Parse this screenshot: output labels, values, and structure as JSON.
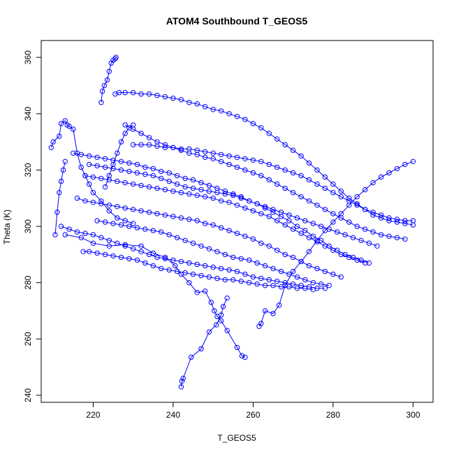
{
  "chart_data": {
    "type": "scatter",
    "title": "ATOM4 Southbound T_GEOS5",
    "xlabel": "T_GEOS5",
    "ylabel": "Theta (K)",
    "xlim": [
      207,
      305
    ],
    "ylim": [
      237.5,
      366
    ],
    "xticks": [
      220,
      240,
      260,
      280,
      300
    ],
    "yticks": [
      240,
      260,
      280,
      300,
      320,
      340,
      360
    ],
    "grid": false,
    "legend": "none",
    "marker": "open-circle",
    "connect_points": true,
    "color": "#0000ff",
    "series": [
      {
        "x": [
          242.0,
          242.2,
          242.5,
          244.5,
          247.0,
          249.0,
          250.8,
          252.0,
          252.5,
          253.5
        ],
        "y": [
          243.0,
          245.0,
          246.0,
          253.5,
          256.5,
          262.5,
          265.0,
          268.5,
          271.5,
          274.5
        ]
      },
      {
        "x": [
          258.0,
          257.2,
          256.0,
          253.5,
          252.0,
          251.0,
          250.3,
          249.5,
          248.0,
          246.0,
          244.0,
          242.0,
          240.5,
          238.0,
          235.0,
          232.0,
          228.0,
          224.0,
          220.0,
          217.0,
          213.0
        ],
        "y": [
          253.5,
          254.0,
          257.0,
          263.0,
          266.5,
          268.0,
          270.0,
          273.0,
          277.0,
          276.5,
          280.0,
          283.0,
          286.0,
          289.0,
          290.5,
          293.0,
          293.5,
          293.0,
          294.0,
          296.0,
          297.0
        ]
      },
      {
        "x": [
          261.5,
          262.0,
          263.0,
          265.0,
          266.5,
          268.0,
          270.0,
          272.0,
          274.0,
          276.0,
          278.0,
          280.0,
          282.0,
          284.0,
          286.0,
          288.0,
          290.0,
          292.0,
          294.0,
          296.0,
          298.0,
          300.0
        ],
        "y": [
          264.5,
          265.5,
          270.0,
          269.0,
          272.0,
          279.0,
          284.0,
          287.5,
          291.0,
          295.0,
          298.5,
          301.5,
          304.5,
          307.5,
          310.5,
          313.0,
          315.5,
          317.5,
          319.0,
          320.5,
          322.0,
          323.0
        ]
      },
      {
        "x": [
          209.5,
          210.0,
          211.5,
          212.0,
          213.0,
          213.5,
          214.0,
          215.0,
          216.0,
          217.0,
          218.0,
          219.0,
          220.0,
          222.0,
          224.0,
          226.0,
          228.0,
          230.0
        ],
        "y": [
          328.0,
          330.0,
          332.0,
          336.5,
          337.5,
          336.0,
          335.5,
          334.5,
          326.0,
          321.0,
          318.0,
          315.0,
          312.0,
          309.0,
          305.5,
          303.0,
          302.0,
          301.0
        ]
      },
      {
        "x": [
          222.0,
          222.3,
          222.8,
          223.5,
          224.0,
          224.5,
          225.0,
          225.5,
          225.7
        ],
        "y": [
          344.0,
          348.0,
          350.0,
          352.0,
          355.0,
          358.0,
          359.0,
          359.5,
          360.0
        ]
      },
      {
        "x": [
          225.5,
          226.5,
          228.0,
          230.0,
          232.0,
          234.0,
          236.0,
          238.0,
          240.0,
          242.0,
          244.0,
          246.0,
          248.0,
          250.0,
          252.0,
          254.0,
          256.0,
          258.0,
          260.0,
          262.0,
          264.0,
          266.0,
          268.0,
          270.0,
          272.0,
          274.0,
          276.0,
          278.0,
          280.0,
          282.0,
          284.0,
          286.0,
          288.0,
          290.0,
          292.0,
          294.0,
          296.0,
          298.0,
          300.0
        ],
        "y": [
          347.0,
          347.5,
          347.5,
          347.5,
          347.0,
          347.0,
          346.5,
          346.0,
          345.5,
          345.0,
          344.0,
          343.5,
          342.5,
          341.5,
          341.0,
          340.0,
          339.0,
          338.0,
          336.5,
          335.0,
          333.0,
          331.0,
          329.0,
          327.0,
          325.0,
          322.5,
          320.0,
          317.5,
          315.0,
          312.5,
          310.0,
          308.0,
          306.0,
          304.0,
          303.0,
          302.0,
          301.5,
          301.0,
          300.5
        ]
      },
      {
        "x": [
          228.0,
          230.0,
          232.0,
          234.0,
          236.0,
          238.0,
          240.0,
          242.0,
          244.0,
          246.0,
          248.0,
          250.0,
          252.0,
          254.0,
          256.0,
          258.0,
          260.0,
          262.0,
          264.0,
          266.0,
          268.0,
          270.0,
          272.0,
          274.0,
          276.0,
          278.0,
          280.0,
          282.0,
          284.0,
          286.0,
          288.0,
          290.0,
          292.0,
          294.0,
          296.0,
          298.0
        ],
        "y": [
          336.0,
          334.5,
          333.0,
          331.5,
          330.0,
          329.0,
          328.0,
          327.0,
          326.0,
          325.5,
          324.5,
          324.0,
          323.0,
          322.0,
          321.0,
          320.0,
          319.0,
          318.0,
          316.5,
          315.0,
          313.5,
          312.0,
          310.5,
          309.0,
          307.5,
          306.0,
          304.5,
          303.0,
          301.5,
          300.0,
          299.0,
          298.0,
          297.0,
          296.5,
          296.0,
          295.5
        ]
      },
      {
        "x": [
          215.0,
          217.0,
          219.0,
          221.0,
          223.0,
          225.0,
          227.0,
          229.0,
          231.0,
          233.0,
          235.0,
          237.0,
          239.0,
          241.0,
          243.0,
          245.0,
          247.0,
          249.0,
          251.0,
          253.0,
          255.0,
          257.0,
          259.0,
          261.0,
          263.0,
          265.0,
          267.0,
          269.0,
          271.0,
          273.0,
          275.0,
          277.0,
          279.0,
          281.0,
          283.0,
          285.0,
          287.0,
          289.0
        ],
        "y": [
          326.0,
          325.5,
          325.0,
          324.5,
          324.0,
          323.5,
          323.0,
          322.5,
          322.0,
          321.0,
          320.5,
          319.5,
          319.0,
          318.0,
          317.0,
          316.5,
          315.5,
          314.5,
          313.5,
          312.5,
          311.5,
          310.5,
          309.0,
          308.0,
          306.5,
          305.0,
          303.5,
          302.0,
          300.0,
          298.5,
          296.5,
          295.0,
          293.0,
          291.5,
          290.0,
          289.0,
          288.0,
          287.0
        ]
      },
      {
        "x": [
          218.0,
          220.0,
          222.0,
          224.0,
          226.0,
          228.0,
          230.0,
          232.0,
          234.0,
          236.0,
          238.0,
          240.0,
          242.0,
          244.0,
          246.0,
          248.0,
          250.0,
          252.0,
          254.0,
          256.0,
          258.0,
          260.0,
          262.0,
          264.0,
          266.0,
          268.0,
          270.0,
          272.0,
          274.0,
          276.0,
          278.0,
          280.0,
          282.0,
          284.0,
          286.0,
          288.0
        ],
        "y": [
          318.0,
          317.5,
          317.0,
          316.5,
          316.0,
          315.5,
          315.0,
          314.5,
          314.0,
          313.5,
          313.0,
          312.5,
          312.0,
          311.5,
          311.0,
          310.5,
          310.0,
          309.0,
          308.5,
          307.5,
          306.5,
          305.5,
          304.5,
          303.5,
          302.0,
          300.5,
          299.0,
          297.5,
          296.0,
          294.5,
          293.0,
          291.5,
          290.0,
          289.0,
          288.0,
          287.0
        ]
      },
      {
        "x": [
          216.0,
          218.0,
          220.0,
          222.0,
          224.0,
          226.0,
          228.0,
          230.0,
          232.0,
          234.0,
          236.0,
          238.0,
          240.0,
          242.0,
          244.0,
          246.0,
          248.0,
          250.0,
          252.0,
          254.0,
          256.0,
          258.0,
          260.0,
          262.0,
          264.0,
          266.0,
          268.0,
          270.0,
          272.0,
          274.0,
          276.0,
          278.0,
          280.0,
          282.0
        ],
        "y": [
          310.0,
          309.0,
          308.5,
          308.0,
          307.5,
          307.0,
          306.5,
          306.0,
          305.5,
          305.0,
          304.5,
          304.0,
          303.5,
          303.0,
          302.5,
          302.0,
          301.0,
          300.5,
          299.5,
          298.5,
          297.5,
          296.5,
          295.5,
          294.0,
          293.0,
          291.5,
          290.0,
          289.0,
          287.5,
          286.0,
          285.0,
          284.0,
          283.0,
          282.0
        ]
      },
      {
        "x": [
          212.0,
          214.0,
          216.0,
          218.0,
          220.0,
          222.0,
          224.0,
          226.0,
          228.0,
          230.0,
          232.0,
          234.0,
          236.0,
          238.0,
          240.0,
          242.0,
          244.0,
          246.0,
          248.0,
          250.0,
          252.0,
          254.0,
          256.0,
          258.0,
          260.0,
          262.0,
          264.0,
          266.0,
          268.0,
          270.0,
          272.0,
          274.0,
          276.0,
          278.0
        ],
        "y": [
          300.0,
          299.0,
          298.0,
          297.5,
          297.0,
          296.0,
          295.0,
          294.0,
          293.0,
          292.0,
          291.0,
          290.0,
          289.0,
          288.5,
          288.0,
          287.5,
          287.0,
          286.5,
          286.0,
          285.5,
          285.0,
          284.5,
          284.0,
          283.0,
          282.0,
          281.5,
          281.0,
          280.5,
          280.0,
          279.5,
          279.0,
          278.5,
          278.0,
          278.0
        ]
      },
      {
        "x": [
          217.5,
          219.0,
          221.0,
          223.0,
          225.0,
          227.0,
          229.0,
          231.0,
          233.0,
          235.0,
          237.0,
          239.0,
          241.0,
          243.0,
          245.0,
          247.0,
          249.0,
          251.0,
          253.0,
          255.0,
          257.0,
          259.0,
          261.0,
          263.0,
          265.0,
          267.0,
          269.0,
          271.0,
          273.0,
          275.0
        ],
        "y": [
          291.0,
          291.0,
          290.5,
          290.0,
          289.5,
          289.0,
          288.5,
          288.0,
          287.0,
          286.0,
          285.0,
          284.5,
          284.0,
          283.5,
          283.0,
          282.5,
          282.0,
          281.5,
          281.0,
          281.0,
          280.5,
          280.0,
          279.5,
          279.0,
          279.0,
          278.5,
          278.5,
          278.0,
          278.0,
          277.5
        ]
      },
      {
        "x": [
          230.0,
          232.0,
          234.0,
          236.0,
          238.0,
          240.0,
          242.0,
          244.0,
          246.0,
          248.0,
          250.0,
          252.0,
          254.0,
          256.0,
          258.0,
          260.0,
          262.0,
          264.0,
          266.0,
          268.0,
          270.0,
          272.0,
          274.0,
          276.0,
          278.0,
          280.0,
          282.0,
          284.0,
          286.0,
          288.0,
          290.0,
          292.0,
          294.0,
          296.0,
          298.0,
          300.0
        ],
        "y": [
          329.0,
          329.0,
          329.0,
          328.5,
          328.0,
          328.0,
          327.5,
          327.5,
          327.0,
          326.5,
          326.0,
          325.5,
          325.0,
          324.5,
          324.0,
          323.5,
          323.0,
          322.0,
          321.0,
          320.0,
          319.0,
          318.0,
          316.5,
          315.0,
          313.5,
          312.0,
          310.5,
          309.0,
          307.5,
          306.0,
          305.0,
          304.0,
          303.0,
          302.5,
          302.0,
          302.0
        ]
      },
      {
        "x": [
          219.0,
          221.0,
          223.0,
          225.0,
          227.0,
          229.0,
          231.0,
          233.0,
          235.0,
          237.0,
          239.0,
          241.0,
          243.0,
          245.0,
          247.0,
          249.0,
          251.0,
          253.0,
          255.0,
          257.0,
          259.0,
          261.0,
          263.0,
          265.0,
          267.0,
          269.0,
          271.0,
          273.0,
          275.0,
          277.0,
          279.0,
          281.0,
          283.0,
          285.0,
          287.0,
          289.0,
          291.0
        ],
        "y": [
          322.0,
          321.5,
          321.0,
          320.5,
          320.0,
          319.5,
          319.0,
          318.5,
          318.0,
          317.0,
          316.0,
          315.0,
          314.0,
          313.5,
          313.0,
          312.5,
          312.0,
          311.5,
          311.0,
          310.0,
          309.0,
          308.0,
          307.0,
          306.0,
          305.0,
          304.0,
          303.0,
          302.0,
          301.0,
          300.0,
          299.0,
          298.0,
          297.0,
          296.0,
          295.0,
          294.0,
          293.0
        ]
      },
      {
        "x": [
          221.0,
          223.0,
          225.0,
          227.0,
          229.0,
          231.0,
          233.0,
          235.0,
          237.0,
          239.0,
          241.0,
          243.0,
          245.0,
          247.0,
          249.0,
          251.0,
          253.0,
          255.0,
          257.0,
          259.0,
          261.0,
          263.0,
          265.0,
          267.0,
          269.0,
          271.0,
          273.0,
          275.0,
          277.0,
          279.0
        ],
        "y": [
          302.0,
          301.5,
          301.0,
          300.5,
          300.0,
          299.5,
          299.0,
          298.5,
          298.0,
          297.0,
          296.0,
          295.0,
          294.0,
          293.0,
          292.0,
          291.0,
          290.0,
          289.0,
          288.5,
          288.0,
          287.0,
          286.0,
          285.0,
          284.0,
          283.0,
          282.0,
          281.0,
          280.0,
          279.5,
          279.0
        ]
      },
      {
        "x": [
          223.0,
          224.0,
          225.0,
          226.0,
          227.0,
          228.0,
          229.0,
          230.0
        ],
        "y": [
          314.0,
          318.0,
          322.0,
          326.0,
          330.0,
          333.0,
          335.0,
          336.0
        ]
      },
      {
        "x": [
          210.5,
          211.0,
          211.5,
          212.0,
          212.5,
          213.0
        ],
        "y": [
          297.0,
          305.0,
          312.0,
          316.0,
          320.0,
          323.0
        ]
      }
    ]
  }
}
